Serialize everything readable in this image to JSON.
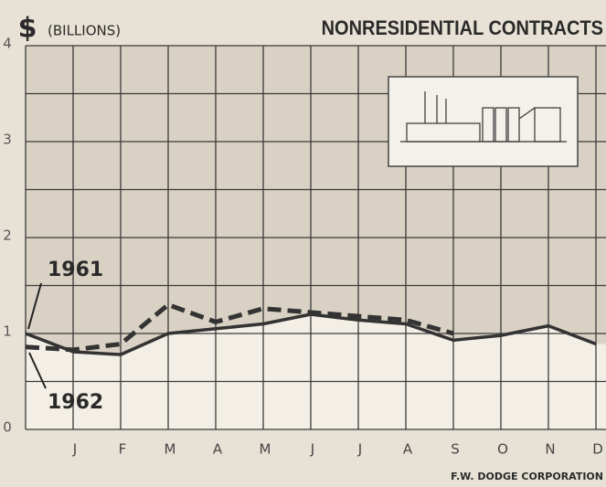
{
  "chart_data": {
    "type": "line",
    "title": "NONRESIDENTIAL CONTRACTS",
    "unit_symbol": "$",
    "y_label": "(BILLIONS)",
    "source": "F.W. DODGE CORPORATION",
    "categories": [
      null,
      "J",
      "F",
      "M",
      "A",
      "M",
      "J",
      "J",
      "A",
      "S",
      "O",
      "N",
      "D"
    ],
    "series": [
      {
        "name": "1961",
        "color": "#333333",
        "style": "solid",
        "values": [
          1.0,
          0.81,
          0.78,
          1.0,
          1.05,
          1.1,
          1.2,
          1.14,
          1.1,
          0.93,
          0.98,
          1.08,
          0.89
        ]
      },
      {
        "name": "1962",
        "color": "#333333",
        "style": "dashed",
        "values": [
          0.86,
          0.83,
          0.89,
          1.3,
          1.12,
          1.26,
          1.22,
          1.18,
          1.14,
          1.0,
          null,
          null,
          null
        ]
      }
    ],
    "ylim": [
      0,
      4
    ],
    "yticks": [
      0,
      1,
      2,
      3,
      4
    ],
    "grid": true,
    "grid_step": 0.5
  }
}
